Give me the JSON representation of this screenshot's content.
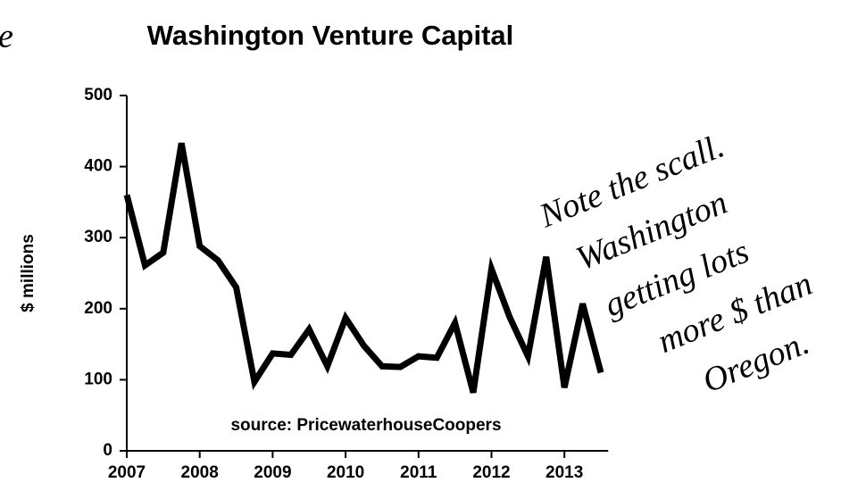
{
  "chart_data": {
    "type": "line",
    "title": "Washington Venture Capital",
    "ylabel": "$ millions",
    "annotations": [
      "source: PricewaterhouseCoopers",
      "e",
      "Note the scall.",
      "Washington",
      "getting lots",
      "more $ than",
      "Oregon."
    ],
    "x": [
      2007,
      2007.25,
      2007.5,
      2007.75,
      2008,
      2008.25,
      2008.5,
      2008.75,
      2009,
      2009.25,
      2009.5,
      2009.75,
      2010,
      2010.25,
      2010.5,
      2010.75,
      2011,
      2011.25,
      2011.5,
      2011.75,
      2012,
      2012.25,
      2012.5,
      2012.75,
      2013,
      2013.25,
      2013.5
    ],
    "values": [
      360,
      261,
      279,
      433,
      288,
      268,
      230,
      97,
      137,
      135,
      171,
      119,
      187,
      148,
      119,
      118,
      133,
      131,
      180,
      82,
      256,
      188,
      133,
      273,
      89,
      207,
      110
    ],
    "color": "#000000",
    "xlim": [
      2007,
      2013.6
    ],
    "ylim": [
      0,
      500
    ],
    "xticks": [
      2007,
      2008,
      2009,
      2010,
      2011,
      2012,
      2013
    ],
    "yticks": [
      0,
      100,
      200,
      300,
      400,
      500
    ],
    "grid": false
  }
}
